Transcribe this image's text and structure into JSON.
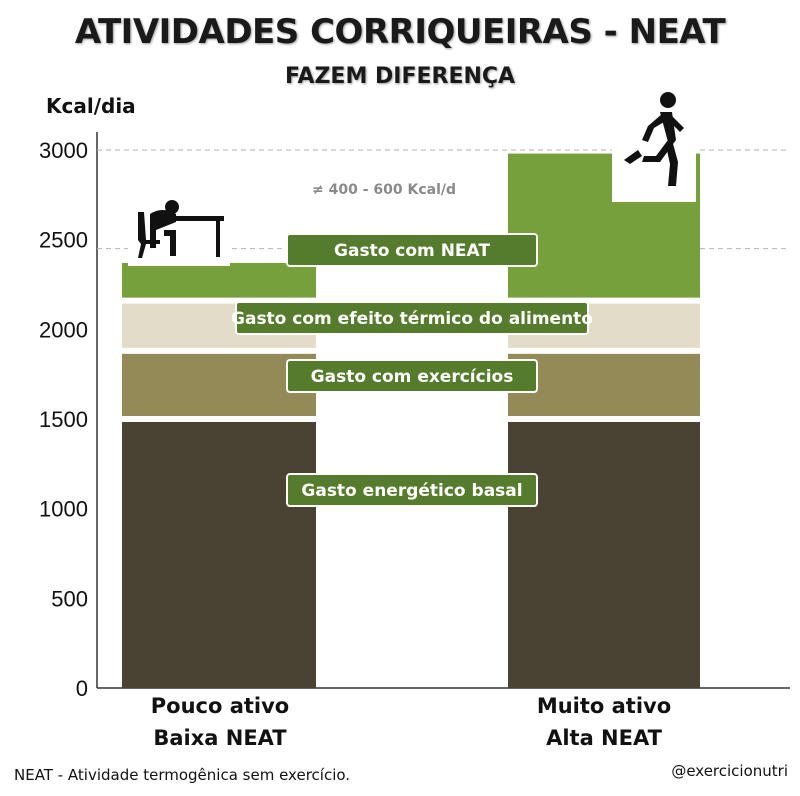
{
  "header": {
    "title": "ATIVIDADES CORRIQUEIRAS - NEAT",
    "subtitle": "FAZEM DIFERENÇA"
  },
  "footer": {
    "note": "NEAT - Atividade termogênica sem exercício.",
    "handle": "@exercicionutri"
  },
  "chart_data": {
    "type": "bar",
    "stacked": true,
    "ylabel": "Kcal/dia",
    "ylim": [
      0,
      3000
    ],
    "yticks": [
      0,
      500,
      1000,
      1500,
      2000,
      2500,
      3000
    ],
    "categories": [
      {
        "line1": "Pouco ativo",
        "line2": "Baixa NEAT"
      },
      {
        "line1": "Muito ativo",
        "line2": "Alta NEAT"
      }
    ],
    "series": [
      {
        "name": "Gasto energético basal",
        "color": "#4a4232",
        "values": [
          1500,
          1500
        ]
      },
      {
        "name": "Gasto com exercícios",
        "color": "#948a58",
        "values": [
          380,
          380
        ]
      },
      {
        "name": "Gasto com efeito térmico do alimento",
        "color": "#e2ddc9",
        "values": [
          280,
          280
        ]
      },
      {
        "name": "Gasto com NEAT",
        "color": "#76a03c",
        "values": [
          210,
          820
        ]
      }
    ],
    "reference_lines": [
      2450,
      3000
    ],
    "annotation": "≠ 400 - 600 Kcal/d",
    "icons": [
      "person-at-desk-icon",
      "running-person-icon"
    ],
    "grid": false
  }
}
